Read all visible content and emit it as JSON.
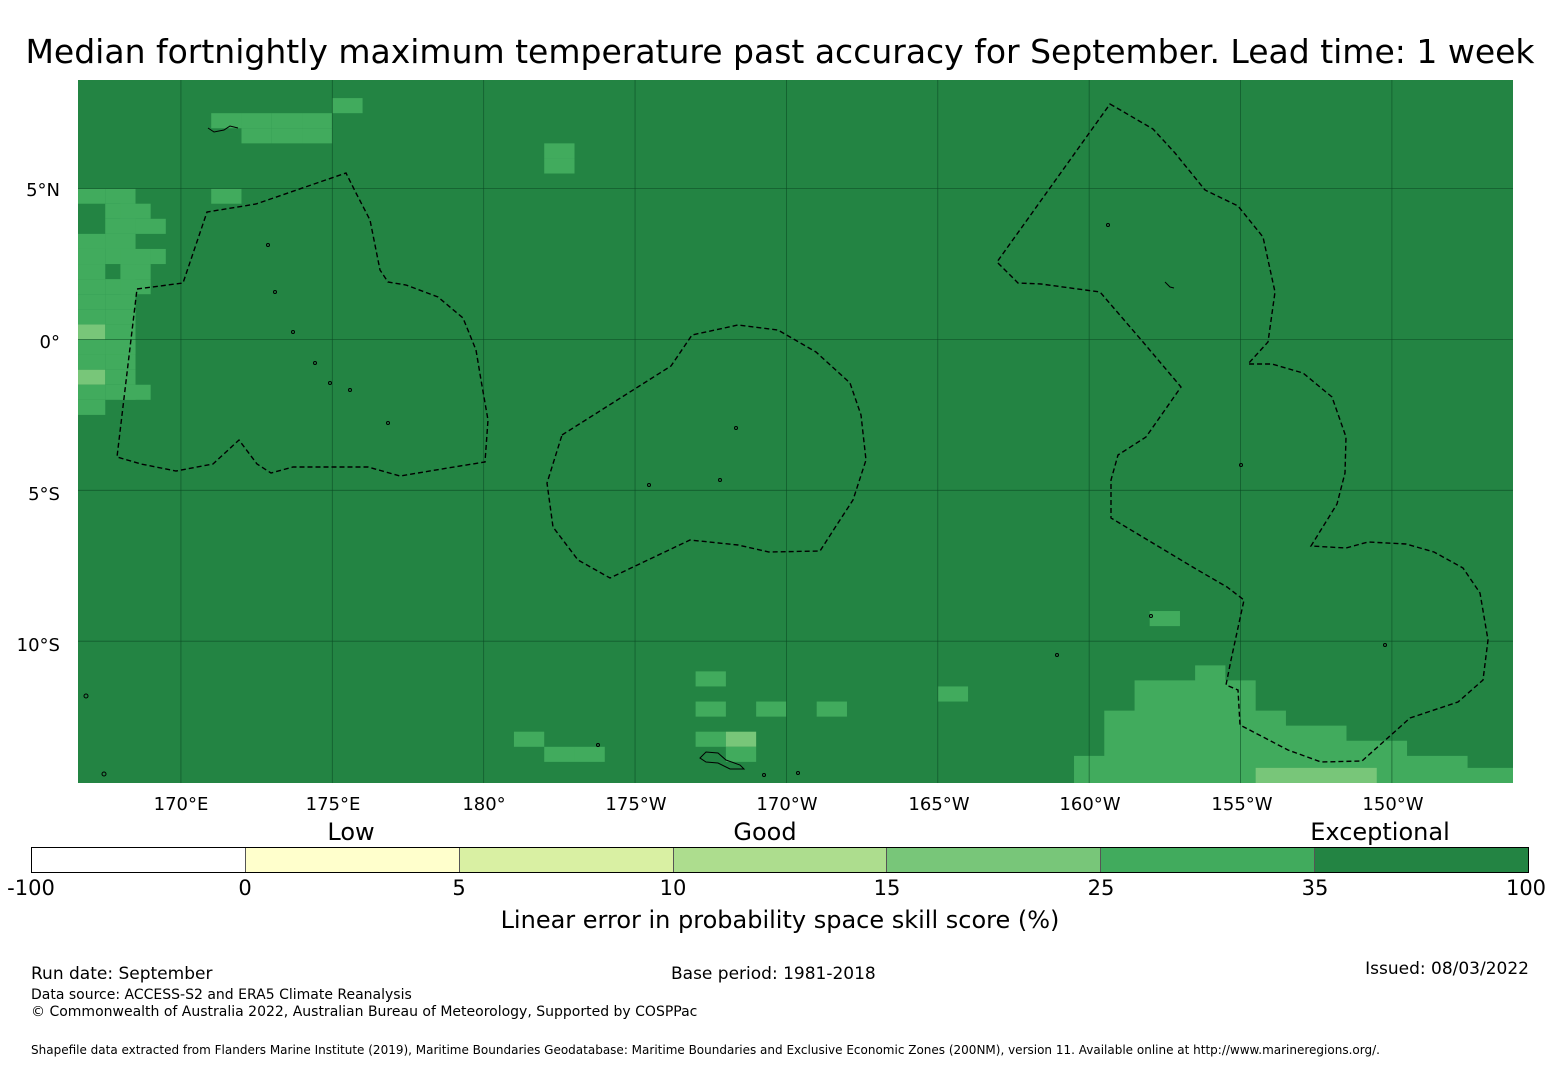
{
  "title": "Median fortnightly maximum temperature past accuracy for September. Lead time: 1 week",
  "map": {
    "latitude_labels": [
      "5°N",
      "0°",
      "5°S",
      "10°S"
    ],
    "longitude_labels": [
      "170°E",
      "175°E",
      "180°",
      "175°W",
      "170°W",
      "165°W",
      "160°W",
      "155°W",
      "150°W"
    ],
    "background_color": "#238443",
    "extent": {
      "lon_min": 166.6,
      "lon_max": 214.0,
      "lat_min": -14.7,
      "lat_max": 8.6
    },
    "lighter_cells": [
      {
        "lon": 171.5,
        "lat": 7.25,
        "color": "#41ab5d"
      },
      {
        "lon": 172.5,
        "lat": 7.25,
        "color": "#41ab5d"
      },
      {
        "lon": 173.5,
        "lat": 7.25,
        "color": "#41ab5d"
      },
      {
        "lon": 174.5,
        "lat": 7.25,
        "color": "#41ab5d"
      },
      {
        "lon": 175.5,
        "lat": 7.75,
        "color": "#41ab5d"
      },
      {
        "lon": 172.5,
        "lat": 6.75,
        "color": "#41ab5d"
      },
      {
        "lon": 173.5,
        "lat": 6.75,
        "color": "#41ab5d"
      },
      {
        "lon": 174.5,
        "lat": 6.75,
        "color": "#41ab5d"
      },
      {
        "lon": 168.0,
        "lat": 4.75,
        "color": "#41ab5d"
      },
      {
        "lon": 168.0,
        "lat": 4.25,
        "color": "#41ab5d"
      },
      {
        "lon": 167.0,
        "lat": 3.25,
        "color": "#41ab5d"
      },
      {
        "lon": 168.0,
        "lat": 3.25,
        "color": "#41ab5d"
      },
      {
        "lon": 169.0,
        "lat": 2.75,
        "color": "#41ab5d"
      },
      {
        "lon": 167.0,
        "lat": 2.25,
        "color": "#41ab5d"
      },
      {
        "lon": 167.0,
        "lat": 1.25,
        "color": "#41ab5d"
      },
      {
        "lon": 168.0,
        "lat": 1.25,
        "color": "#41ab5d"
      },
      {
        "lon": 167.0,
        "lat": 0.25,
        "color": "#78c679"
      },
      {
        "lon": 168.0,
        "lat": -0.75,
        "color": "#41ab5d"
      },
      {
        "lon": 167.0,
        "lat": -1.25,
        "color": "#78c679"
      },
      {
        "lon": 167.0,
        "lat": -2.25,
        "color": "#41ab5d"
      },
      {
        "lon": 171.5,
        "lat": 4.75,
        "color": "#41ab5d"
      },
      {
        "lon": 168.0,
        "lat": 3.75,
        "color": "#41ab5d"
      },
      {
        "lon": 168.5,
        "lat": -1.75,
        "color": "#41ab5d"
      },
      {
        "lon": 168.5,
        "lat": 2.25,
        "color": "#41ab5d"
      },
      {
        "lon": 168.5,
        "lat": 4.25,
        "color": "#41ab5d"
      },
      {
        "lon": 168.0,
        "lat": 0.25,
        "color": "#41ab5d"
      },
      {
        "lon": 168.0,
        "lat": -0.25,
        "color": "#41ab5d"
      },
      {
        "lon": 168.0,
        "lat": -1.25,
        "color": "#41ab5d"
      },
      {
        "lon": 168.0,
        "lat": 1.75,
        "color": "#41ab5d"
      },
      {
        "lon": 168.0,
        "lat": 2.75,
        "color": "#41ab5d"
      },
      {
        "lon": 168.0,
        "lat": 0.75,
        "color": "#41ab5d"
      },
      {
        "lon": 167.0,
        "lat": 0.75,
        "color": "#41ab5d"
      },
      {
        "lon": 167.0,
        "lat": -0.25,
        "color": "#41ab5d"
      },
      {
        "lon": 167.0,
        "lat": -0.75,
        "color": "#41ab5d"
      },
      {
        "lon": 167.0,
        "lat": -1.75,
        "color": "#41ab5d"
      },
      {
        "lon": 167.0,
        "lat": 1.75,
        "color": "#41ab5d"
      },
      {
        "lon": 167.0,
        "lat": 2.75,
        "color": "#41ab5d"
      },
      {
        "lon": 167.0,
        "lat": 4.75,
        "color": "#41ab5d"
      },
      {
        "lon": 169.0,
        "lat": 3.75,
        "color": "#41ab5d"
      },
      {
        "lon": 168.0,
        "lat": -1.75,
        "color": "#41ab5d"
      },
      {
        "lon": 168.0,
        "lat": -0.25,
        "color": "#41ab5d"
      },
      {
        "lon": 168.0,
        "lat": 3.25,
        "color": "#41ab5d"
      },
      {
        "lon": 168.5,
        "lat": 2.75,
        "color": "#41ab5d"
      },
      {
        "lon": 168.5,
        "lat": 1.75,
        "color": "#41ab5d"
      },
      {
        "lon": 182.5,
        "lat": 6.25,
        "color": "#41ab5d"
      },
      {
        "lon": 182.5,
        "lat": 5.75,
        "color": "#41ab5d"
      },
      {
        "lon": 187.5,
        "lat": -11.25,
        "color": "#41ab5d"
      },
      {
        "lon": 187.5,
        "lat": -12.25,
        "color": "#41ab5d"
      },
      {
        "lon": 189.5,
        "lat": -12.25,
        "color": "#41ab5d"
      },
      {
        "lon": 191.5,
        "lat": -12.25,
        "color": "#41ab5d"
      },
      {
        "lon": 187.5,
        "lat": -13.25,
        "color": "#41ab5d"
      },
      {
        "lon": 188.5,
        "lat": -13.25,
        "color": "#78c679"
      },
      {
        "lon": 188.5,
        "lat": -13.75,
        "color": "#41ab5d"
      },
      {
        "lon": 181.5,
        "lat": -13.25,
        "color": "#41ab5d"
      },
      {
        "lon": 182.5,
        "lat": -13.75,
        "color": "#41ab5d"
      },
      {
        "lon": 183.5,
        "lat": -13.75,
        "color": "#41ab5d"
      },
      {
        "lon": 195.5,
        "lat": -11.75,
        "color": "#41ab5d"
      },
      {
        "lon": 202.5,
        "lat": -9.25,
        "color": "#41ab5d"
      }
    ],
    "lighter_patch_se": {
      "color": "#41ab5d",
      "accent_color": "#78c679"
    },
    "eez_line_color": "#000000"
  },
  "colorbar": {
    "category_labels": [
      "Low",
      "Good",
      "Exceptional"
    ],
    "tick_labels": [
      "-100",
      "0",
      "5",
      "10",
      "15",
      "25",
      "35",
      "100"
    ],
    "colors": [
      "#ffffff",
      "#ffffcc",
      "#d9f0a3",
      "#addd8e",
      "#78c679",
      "#41ab5d",
      "#238443"
    ],
    "title": "Linear error in probability space skill score (%)"
  },
  "footer": {
    "run_date": "Run date: September",
    "base_period": "Base period: 1981-2018",
    "issued": "Issued: 08/03/2022",
    "data_source": "Data source: ACCESS-S2 and ERA5 Climate Reanalysis",
    "copyright": "© Commonwealth of Australia 2022, Australian Bureau of Meteorology, Supported by COSPPac",
    "shapefile": "Shapefile data extracted from Flanders Marine Institute (2019), Maritime Boundaries Geodatabase: Maritime Boundaries and Exclusive Economic Zones (200NM), version 11. Available online at http://www.marineregions.org/."
  }
}
